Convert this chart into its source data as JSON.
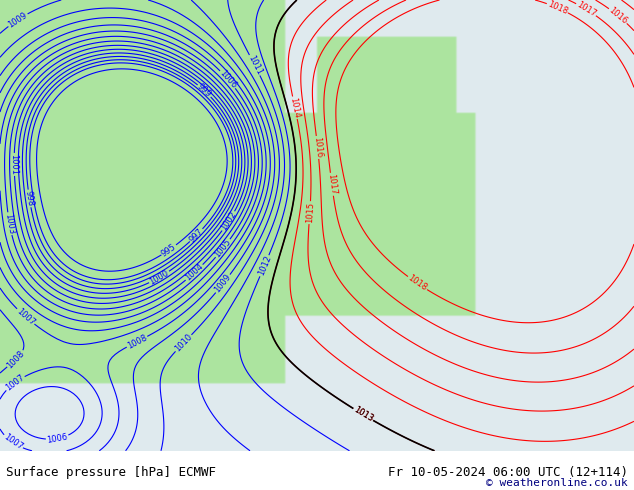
{
  "title_left": "Surface pressure [hPa] ECMWF",
  "title_right": "Fr 10-05-2024 06:00 UTC (12+114)",
  "copyright": "© weatheronline.co.uk",
  "bg_land_color": "#b2e5a0",
  "bg_sea_color": "#e8e8e8",
  "contour_blue_color": "#0000ff",
  "contour_red_color": "#ff0000",
  "contour_black_color": "#000000",
  "font_size_label": 8,
  "font_size_title": 9,
  "bottom_bar_color": "#d4d4d4",
  "border_color": "#000000"
}
